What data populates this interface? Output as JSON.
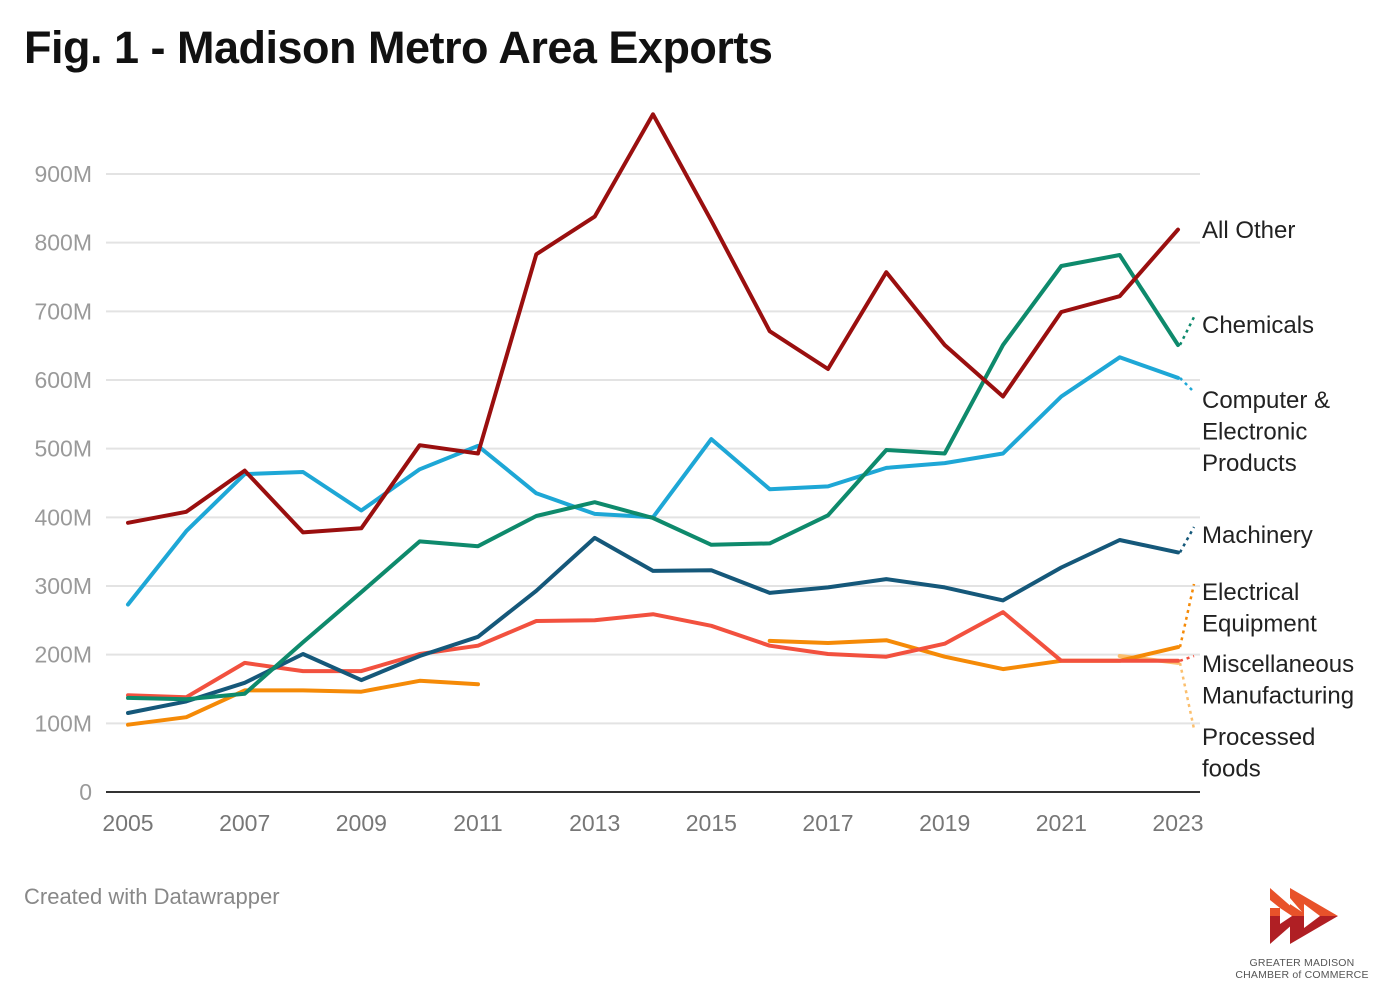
{
  "title": "Fig. 1 - Madison Metro Area Exports",
  "footer": "Created with Datawrapper",
  "logo": {
    "line1": "GREATER MADISON",
    "line2": "CHAMBER of COMMERCE",
    "colors": [
      "#e8522a",
      "#b01f24"
    ]
  },
  "chart_data": {
    "type": "line",
    "title": "Fig. 1 - Madison Metro Area Exports",
    "xlabel": "",
    "ylabel": "",
    "x": [
      2005,
      2006,
      2007,
      2008,
      2009,
      2010,
      2011,
      2012,
      2013,
      2014,
      2015,
      2016,
      2017,
      2018,
      2019,
      2020,
      2021,
      2022,
      2023
    ],
    "x_ticks": [
      "2005",
      "2007",
      "2009",
      "2011",
      "2013",
      "2015",
      "2017",
      "2019",
      "2021",
      "2023"
    ],
    "y_ticks": [
      {
        "value": 0,
        "label": "0"
      },
      {
        "value": 100,
        "label": "100M"
      },
      {
        "value": 200,
        "label": "200M"
      },
      {
        "value": 300,
        "label": "300M"
      },
      {
        "value": 400,
        "label": "400M"
      },
      {
        "value": 500,
        "label": "500M"
      },
      {
        "value": 600,
        "label": "600M"
      },
      {
        "value": 700,
        "label": "700M"
      },
      {
        "value": 800,
        "label": "800M"
      },
      {
        "value": 900,
        "label": "900M"
      }
    ],
    "units": "millions USD",
    "ylim": [
      0,
      1000
    ],
    "grid": true,
    "legend": "direct labels at right",
    "series": [
      {
        "name": "All Other",
        "label_lines": [
          "All Other"
        ],
        "color": "#9a0f0f",
        "values": [
          392,
          408,
          468,
          378,
          384,
          505,
          493,
          783,
          838,
          987,
          832,
          671,
          616,
          757,
          651,
          576,
          699,
          722,
          819
        ]
      },
      {
        "name": "Chemicals",
        "label_lines": [
          "Chemicals"
        ],
        "color": "#0e8a6c",
        "values": [
          137,
          135,
          143,
          218,
          291,
          365,
          358,
          402,
          422,
          399,
          360,
          362,
          403,
          498,
          493,
          651,
          766,
          782,
          651
        ]
      },
      {
        "name": "Computer & Electronic Products",
        "label_lines": [
          "Computer &",
          "Electronic",
          "Products"
        ],
        "color": "#1ea7d6",
        "values": [
          273,
          380,
          463,
          466,
          410,
          470,
          504,
          435,
          405,
          400,
          514,
          441,
          445,
          472,
          479,
          493,
          576,
          633,
          603
        ]
      },
      {
        "name": "Machinery",
        "label_lines": [
          "Machinery"
        ],
        "color": "#15587a",
        "values": [
          115,
          132,
          159,
          201,
          163,
          198,
          226,
          293,
          370,
          322,
          323,
          290,
          298,
          310,
          298,
          279,
          327,
          367,
          349
        ]
      },
      {
        "name": "Electrical Equipment",
        "label_lines": [
          "Electrical",
          "Equipment"
        ],
        "color": "#f58a07",
        "values": [
          98,
          109,
          148,
          148,
          146,
          162,
          157,
          null,
          null,
          null,
          null,
          220,
          217,
          221,
          197,
          179,
          191,
          191,
          211
        ]
      },
      {
        "name": "Miscellaneous Manufacturing",
        "label_lines": [
          "Miscellaneous",
          "Manufacturing"
        ],
        "color": "#f2513f",
        "values": [
          141,
          138,
          188,
          176,
          176,
          201,
          213,
          249,
          250,
          259,
          242,
          213,
          201,
          197,
          216,
          262,
          191,
          191,
          191
        ]
      },
      {
        "name": "Processed foods",
        "label_lines": [
          "Processed",
          "foods"
        ],
        "color": "#fbbf6e",
        "values": [
          null,
          null,
          null,
          null,
          null,
          null,
          null,
          null,
          null,
          null,
          null,
          null,
          null,
          null,
          null,
          null,
          null,
          198,
          188
        ]
      }
    ]
  }
}
